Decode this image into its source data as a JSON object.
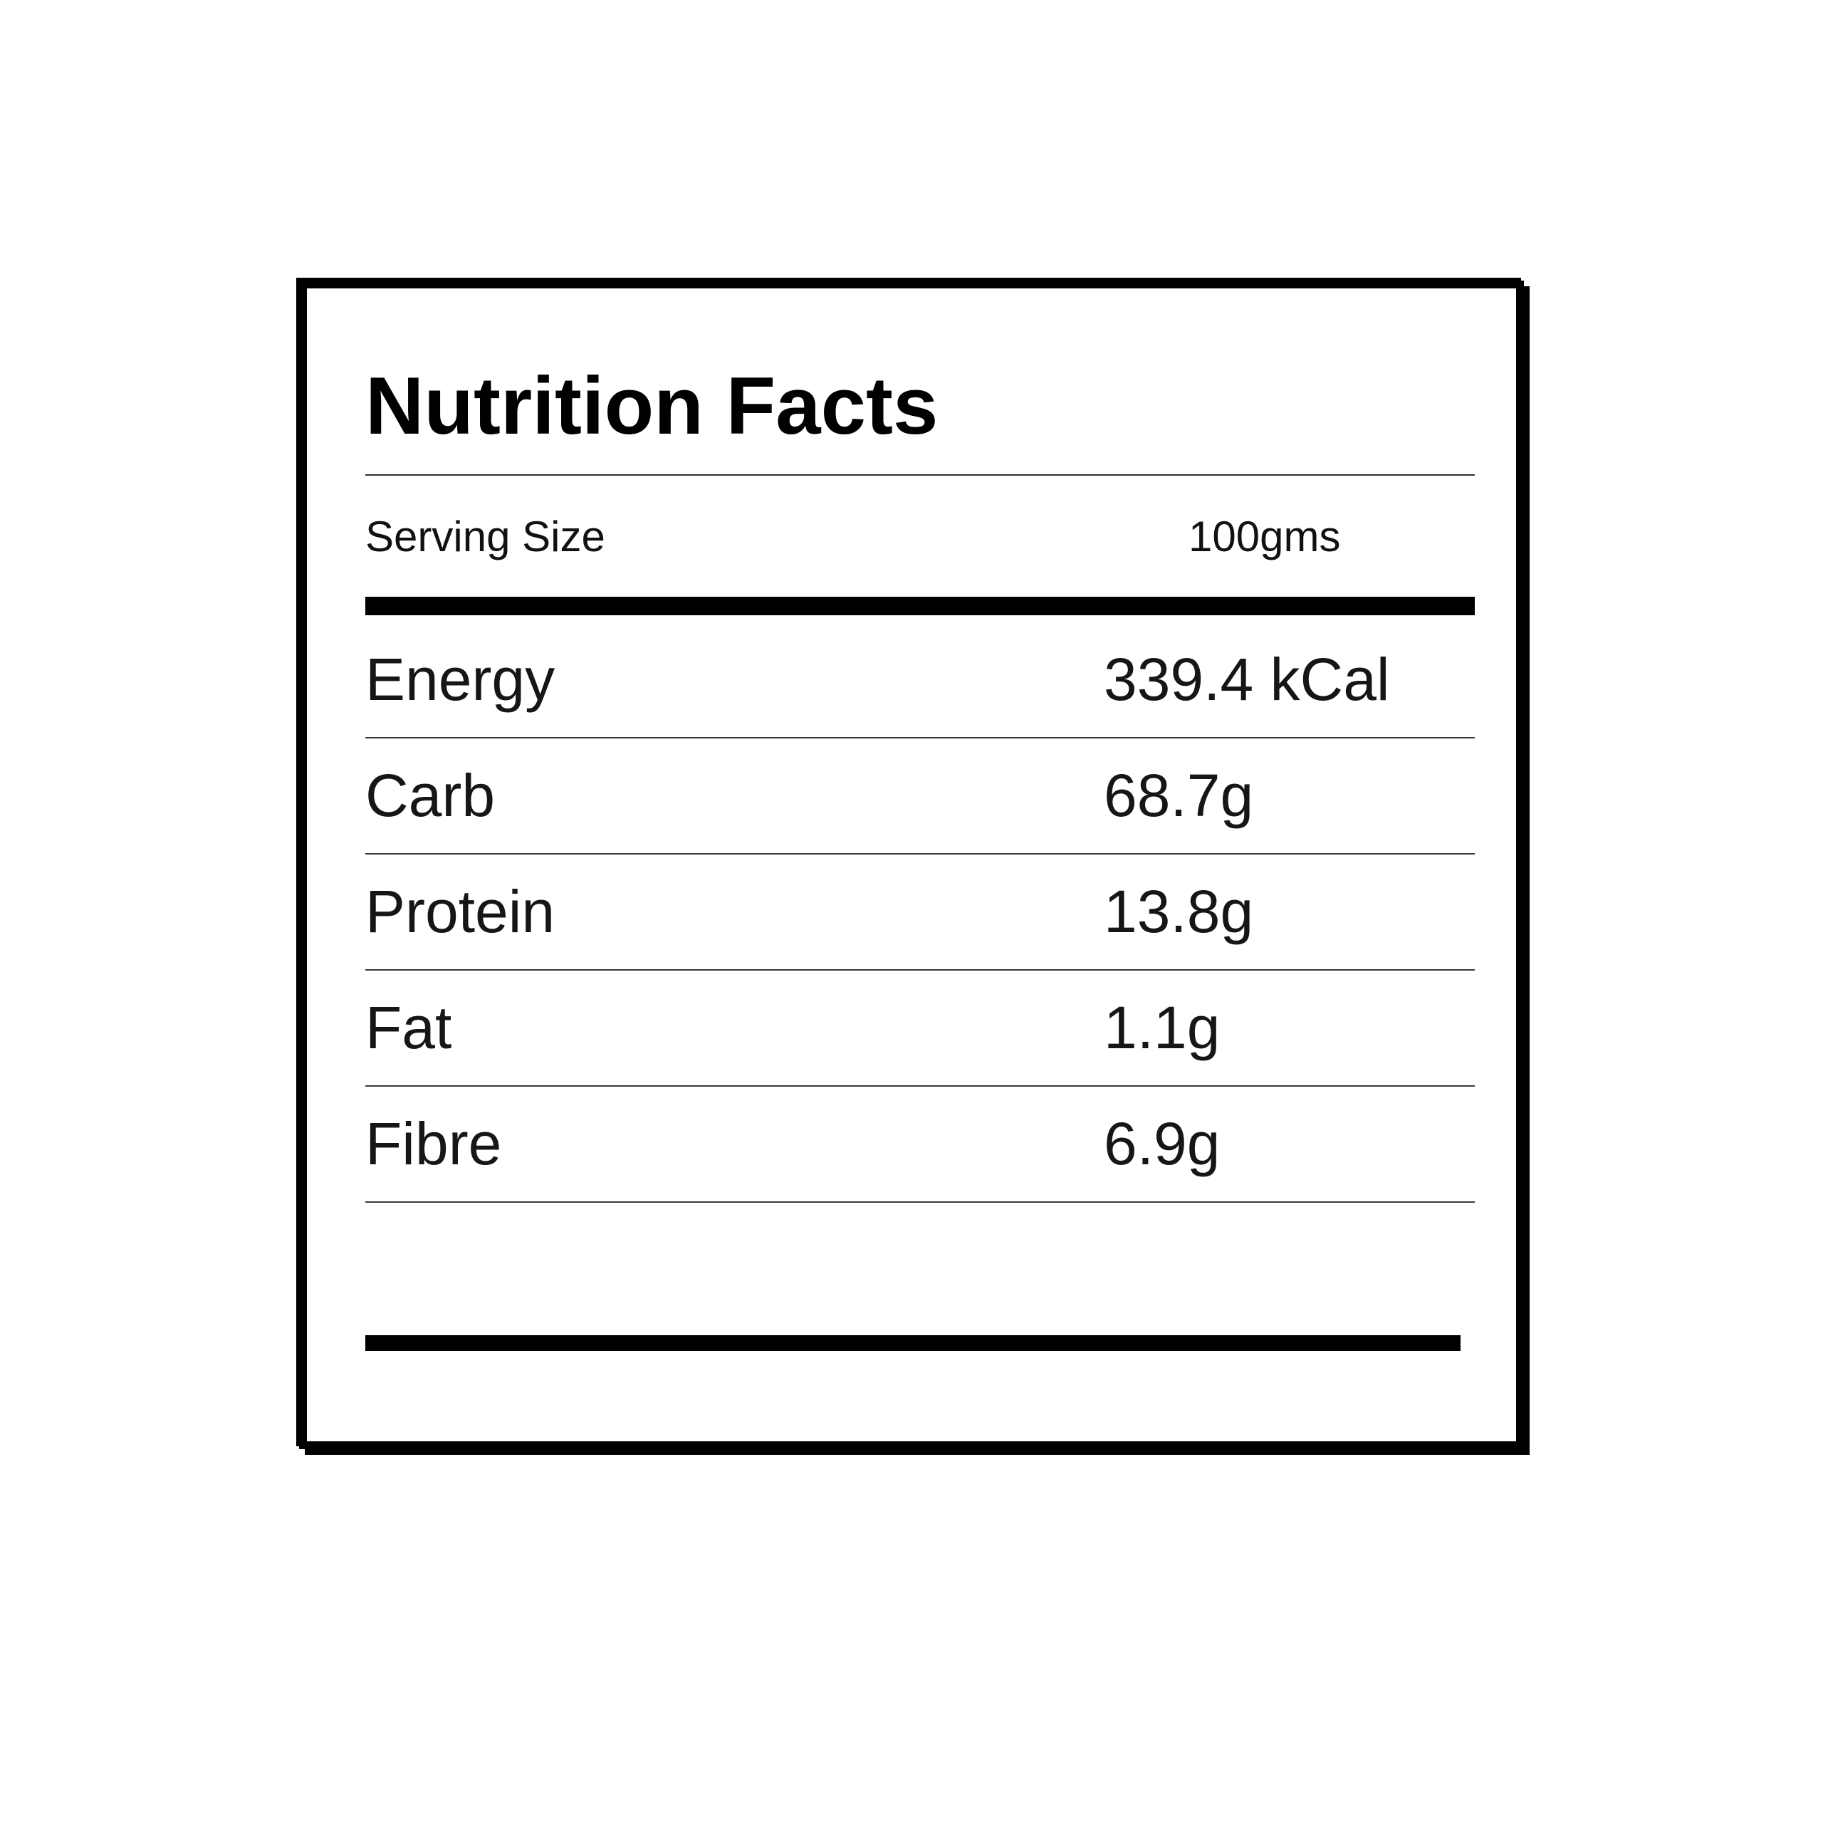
{
  "label": {
    "title": "Nutrition Facts",
    "serving": {
      "label": "Serving Size",
      "value": "100gms"
    },
    "rows": [
      {
        "name": "Energy",
        "value": "339.4 kCal"
      },
      {
        "name": "Carb",
        "value": "68.7g"
      },
      {
        "name": "Protein",
        "value": "13.8g"
      },
      {
        "name": "Fat",
        "value": "1.1g"
      },
      {
        "name": "Fibre",
        "value": "6.9g"
      }
    ],
    "colors": {
      "ink": "#000000",
      "text": "#161616",
      "divider": "#3a3a3a",
      "background": "#ffffff"
    }
  }
}
